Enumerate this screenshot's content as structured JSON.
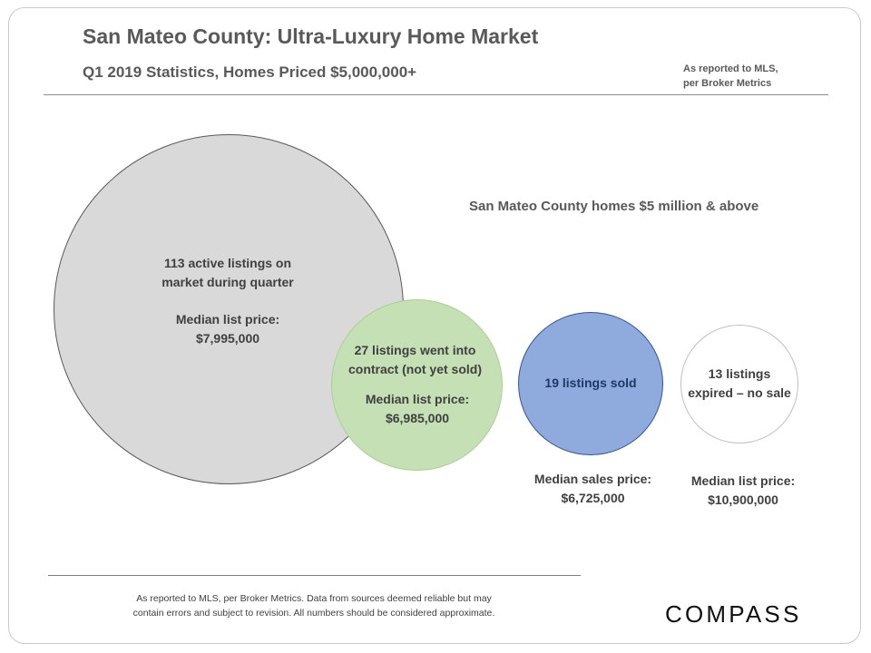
{
  "header": {
    "title": "San Mateo County: Ultra-Luxury Home Market",
    "subtitle": "Q1 2019 Statistics,  Homes  Priced  $5,000,000+",
    "source_line1": "As reported to MLS,",
    "source_line2": "per Broker Metrics"
  },
  "caption": "San Mateo County homes $5 million & above",
  "bubbles": {
    "active": {
      "count": 113,
      "line1": "113 active listings on",
      "line2": "market during quarter",
      "price_label": "Median list price:",
      "price": "$7,995,000",
      "fill": "#d9d9d9"
    },
    "contract": {
      "count": 27,
      "line1": "27 listings went into",
      "line2": "contract (not yet sold)",
      "price_label": "Median list price:",
      "price": "$6,985,000",
      "fill": "#c5e0b4"
    },
    "sold": {
      "count": 19,
      "line1": "19 listings sold",
      "price_label": "Median sales price:",
      "price": "$6,725,000",
      "fill": "#8faadc"
    },
    "expired": {
      "count": 13,
      "line1": "13 listings",
      "line2": "expired – no sale",
      "price_label": "Median list price:",
      "price": "$10,900,000",
      "fill": "#ffffff"
    }
  },
  "footer": {
    "note_line1": "As reported to MLS, per Broker Metrics. Data from sources deemed  reliable but may",
    "note_line2": "contain errors and subject to revision. All numbers should be considered approximate.",
    "logo_text": "COMPASS"
  }
}
